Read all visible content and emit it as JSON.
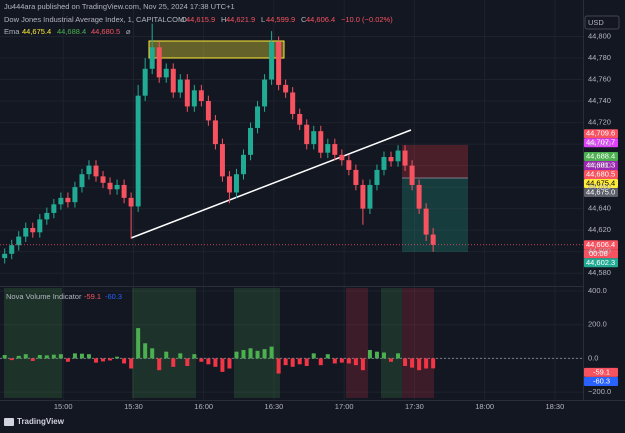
{
  "header": {
    "publisher": "Ju444ara published on TradingView.com, Nov 25, 2024 17:38 UTC+1",
    "symbol": "Dow Jones Industrial Average Index, 1, CAPITALCOM",
    "ohlc": [
      {
        "label": "O",
        "value": "44,615.9"
      },
      {
        "label": "H",
        "value": "44,621.9"
      },
      {
        "label": "L",
        "value": "44,599.9"
      },
      {
        "label": "C",
        "value": "44,606.4"
      }
    ],
    "change": "−10.0 (−0.02%)",
    "ema_label": "Ema",
    "ema_extra": "⌀",
    "currency": "USD",
    "countdown": "00:08",
    "logo": "TradingView"
  },
  "chart_data": [
    {
      "type": "candlestick",
      "up_color": "#22ab94",
      "down_color": "#f7525f",
      "grid": true,
      "xlim": [
        "14:33",
        "18:42"
      ],
      "xticks": [
        "15:00",
        "15:30",
        "16:00",
        "16:30",
        "17:00",
        "17:30",
        "18:00",
        "18:30"
      ],
      "ylim": [
        44569,
        44820
      ],
      "yticks": [
        {
          "value": 44580,
          "label": "44,580"
        },
        {
          "value": 44600,
          "label": "44,600"
        },
        {
          "value": 44620,
          "label": "44,620"
        },
        {
          "value": 44640,
          "label": "44,640"
        },
        {
          "value": 44660,
          "label": "44,660"
        },
        {
          "value": 44680,
          "label": "44,680"
        },
        {
          "value": 44700,
          "label": "44,700"
        },
        {
          "value": 44720,
          "label": "44,720"
        },
        {
          "value": 44740,
          "label": "44,740"
        },
        {
          "value": 44760,
          "label": "44,760"
        },
        {
          "value": 44780,
          "label": "44,780"
        },
        {
          "value": 44800,
          "label": "44,800"
        }
      ],
      "x": [
        "14:35",
        "14:38",
        "14:41",
        "14:44",
        "14:47",
        "14:50",
        "14:53",
        "14:56",
        "14:59",
        "15:02",
        "15:05",
        "15:08",
        "15:11",
        "15:14",
        "15:17",
        "15:20",
        "15:23",
        "15:26",
        "15:29",
        "15:32",
        "15:35",
        "15:38",
        "15:41",
        "15:44",
        "15:47",
        "15:50",
        "15:53",
        "15:56",
        "15:59",
        "16:02",
        "16:05",
        "16:08",
        "16:11",
        "16:14",
        "16:17",
        "16:20",
        "16:23",
        "16:26",
        "16:29",
        "16:32",
        "16:35",
        "16:38",
        "16:41",
        "16:44",
        "16:47",
        "16:50",
        "16:53",
        "16:56",
        "16:59",
        "17:02",
        "17:05",
        "17:08",
        "17:11",
        "17:14",
        "17:17",
        "17:20",
        "17:23",
        "17:26",
        "17:29",
        "17:32",
        "17:35",
        "17:38"
      ],
      "open": [
        44594,
        44598,
        44606,
        44614,
        44622,
        44618,
        44630,
        44636,
        44644,
        44650,
        44646,
        44660,
        44672,
        44680,
        44670,
        44664,
        44658,
        44662,
        44650,
        44642,
        44745,
        44770,
        44790,
        44762,
        44770,
        44748,
        44760,
        44735,
        44750,
        44740,
        44722,
        44700,
        44670,
        44655,
        44672,
        44690,
        44715,
        44735,
        44760,
        44795,
        44755,
        44748,
        44728,
        44718,
        44700,
        44712,
        44692,
        44700,
        44690,
        44685,
        44676,
        44662,
        44640,
        44662,
        44676,
        44688,
        44684,
        44694,
        44680,
        44662,
        44640,
        44615.9
      ],
      "high": [
        44603,
        44611,
        44619,
        44627,
        44627,
        44635,
        44641,
        44649,
        44655,
        44655,
        44665,
        44677,
        44685,
        44685,
        44675,
        44669,
        44667,
        44667,
        44655,
        44755,
        44780,
        44812,
        44795,
        44775,
        44775,
        44765,
        44765,
        44755,
        44755,
        44745,
        44727,
        44705,
        44675,
        44677,
        44695,
        44720,
        44740,
        44765,
        44805,
        44800,
        44760,
        44753,
        44733,
        44723,
        44717,
        44717,
        44705,
        44705,
        44695,
        44690,
        44681,
        44667,
        44667,
        44681,
        44693,
        44693,
        44699,
        44699,
        44685,
        44667,
        44645,
        44621.9
      ],
      "low": [
        44589,
        44593,
        44601,
        44609,
        44613,
        44613,
        44625,
        44631,
        44639,
        44641,
        44641,
        44655,
        44667,
        44665,
        44659,
        44653,
        44653,
        44645,
        44612,
        44637,
        44740,
        44765,
        44757,
        44757,
        44743,
        44743,
        44730,
        44730,
        44735,
        44717,
        44695,
        44665,
        44645,
        44650,
        44667,
        44685,
        44710,
        44730,
        44755,
        44750,
        44743,
        44723,
        44713,
        44695,
        44695,
        44687,
        44687,
        44685,
        44680,
        44671,
        44657,
        44625,
        44635,
        44657,
        44671,
        44679,
        44679,
        44675,
        44657,
        44635,
        44610,
        44599.9
      ],
      "close": [
        44598,
        44606,
        44614,
        44622,
        44618,
        44630,
        44636,
        44644,
        44650,
        44646,
        44660,
        44672,
        44680,
        44670,
        44664,
        44658,
        44662,
        44650,
        44642,
        44745,
        44770,
        44790,
        44762,
        44770,
        44748,
        44760,
        44735,
        44750,
        44740,
        44722,
        44700,
        44670,
        44655,
        44672,
        44690,
        44715,
        44735,
        44760,
        44795,
        44755,
        44748,
        44728,
        44718,
        44700,
        44712,
        44692,
        44700,
        44690,
        44685,
        44676,
        44662,
        44640,
        44662,
        44676,
        44688,
        44684,
        44694,
        44680,
        44662,
        44640,
        44615.9,
        44606.4
      ],
      "price_tags": [
        {
          "value": 44709.6,
          "label": "44,709.6",
          "color": "#f7525f",
          "text_color": "#ffffff"
        },
        {
          "value": 44707.7,
          "label": "44,707.7",
          "color": "#e040fb",
          "text_color": "#ffffff"
        },
        {
          "value": 44688.4,
          "label": "44,688.4",
          "color": "#4caf50",
          "text_color": "#ffffff"
        },
        {
          "value": 44681.3,
          "label": "44,681.3",
          "color": "#9c27b0",
          "text_color": "#ffffff"
        },
        {
          "value": 44680.5,
          "label": "44,680.5",
          "color": "#f7525f",
          "text_color": "#ffffff"
        },
        {
          "value": 44675.4,
          "label": "44,675.4",
          "color": "#ffeb3b",
          "text_color": "#000000"
        },
        {
          "value": 44675,
          "label": "44,675.0",
          "color": "#5d606b",
          "text_color": "#ffffff"
        },
        {
          "value": 44606.4,
          "label": "44,606.4",
          "color": "#f7525f",
          "text_color": "#ffffff"
        },
        {
          "value": 44602.3,
          "label": "44,602.3",
          "color": "#22ab94",
          "text_color": "#ffffff"
        }
      ]
    },
    {
      "type": "bar",
      "title": "Nova Volume Indicator",
      "up_color": "#4caf50",
      "down_color": "#f23645",
      "legend": [
        {
          "value": -59.1,
          "color": "#f7525f"
        },
        {
          "value": -60.3,
          "color": "#2962ff"
        }
      ],
      "ylim": [
        -247,
        424
      ],
      "yticks": [
        {
          "value": 400,
          "label": "400.0"
        },
        {
          "value": 200,
          "label": "200.0"
        },
        {
          "value": 0,
          "label": "0.0"
        },
        {
          "value": -200,
          "label": "−200.0"
        }
      ],
      "values": [
        20,
        -10,
        15,
        25,
        -15,
        20,
        18,
        22,
        25,
        -20,
        30,
        28,
        25,
        -25,
        -18,
        -12,
        10,
        -30,
        -60,
        180,
        90,
        60,
        -70,
        40,
        -50,
        30,
        -45,
        25,
        -20,
        -35,
        -50,
        -80,
        -60,
        40,
        50,
        60,
        45,
        55,
        70,
        -90,
        -40,
        -50,
        -35,
        -45,
        30,
        -40,
        25,
        -30,
        -25,
        -30,
        -40,
        -70,
        50,
        40,
        35,
        -20,
        30,
        -45,
        -55,
        -70,
        -60,
        -59.1
      ]
    }
  ]
}
